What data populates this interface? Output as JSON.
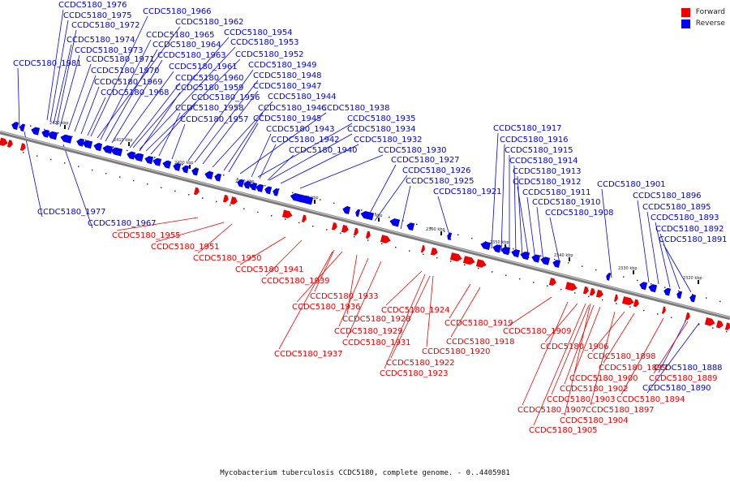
{
  "legend": {
    "forward": {
      "label": "Forward",
      "color": "#ee0000"
    },
    "reverse": {
      "label": "Reverse",
      "color": "#0000ee"
    }
  },
  "caption": "Mycobacterium tuberculosis CCDC5180, complete genome. - 0..4405981",
  "scale_ticks": [
    "2420 kbp",
    "2410 kbp",
    "2400 kbp",
    "2390 kbp",
    "2380 kbp",
    "2370 kbp",
    "2360 kbp",
    "2350 kbp",
    "2340 kbp",
    "2330 kbp",
    "2320 kbp"
  ],
  "reverse_genes": [
    "CCDC5180_1976",
    "CCDC5180_1975",
    "CCDC5180_1972",
    "CCDC5180_1974",
    "CCDC5180_1973",
    "CCDC5180_1971",
    "CCDC5180_1981",
    "CCDC5180_1970",
    "CCDC5180_1969",
    "CCDC5180_1968",
    "CCDC5180_1966",
    "CCDC5180_1962",
    "CCDC5180_1965",
    "CCDC5180_1964",
    "CCDC5180_1963",
    "CCDC5180_1961",
    "CCDC5180_1960",
    "CCDC5180_1959",
    "CCDC5180_1956",
    "CCDC5180_1958",
    "CCDC5180_1957",
    "CCDC5180_1954",
    "CCDC5180_1953",
    "CCDC5180_1952",
    "CCDC5180_1949",
    "CCDC5180_1948",
    "CCDC5180_1947",
    "CCDC5180_1944",
    "CCDC5180_1946",
    "CCDC5180_1938",
    "CCDC5180_1945",
    "CCDC5180_1935",
    "CCDC5180_1943",
    "CCDC5180_1934",
    "CCDC5180_1942",
    "CCDC5180_1932",
    "CCDC5180_1940",
    "CCDC5180_1930",
    "CCDC5180_1927",
    "CCDC5180_1926",
    "CCDC5180_1925",
    "CCDC5180_1921",
    "CCDC5180_1917",
    "CCDC5180_1916",
    "CCDC5180_1915",
    "CCDC5180_1914",
    "CCDC5180_1913",
    "CCDC5180_1912",
    "CCDC5180_1911",
    "CCDC5180_1910",
    "CCDC5180_1908",
    "CCDC5180_1901",
    "CCDC5180_1896",
    "CCDC5180_1895",
    "CCDC5180_1893",
    "CCDC5180_1892",
    "CCDC5180_1891",
    "CCDC5180_1977",
    "CCDC5180_1967",
    "CCDC5180_1888",
    "CCDC5180_1890"
  ],
  "forward_genes": [
    "CCDC5180_1955",
    "CCDC5180_1951",
    "CCDC5180_1950",
    "CCDC5180_1941",
    "CCDC5180_1939",
    "CCDC5180_1933",
    "CCDC5180_1936",
    "CCDC5180_1928",
    "CCDC5180_1929",
    "CCDC5180_1931",
    "CCDC5180_1937",
    "CCDC5180_1924",
    "CCDC5180_1919",
    "CCDC5180_1918",
    "CCDC5180_1920",
    "CCDC5180_1922",
    "CCDC5180_1923",
    "CCDC5180_1909",
    "CCDC5180_1906",
    "CCDC5180_1898",
    "CCDC5180_1899",
    "CCDC5180_1900",
    "CCDC5180_1902",
    "CCDC5180_1903",
    "CCDC5180_1907",
    "CCDC5180_1904",
    "CCDC5180_1905",
    "CCDC5180_1894",
    "CCDC5180_1897",
    "CCDC5180_1889"
  ]
}
